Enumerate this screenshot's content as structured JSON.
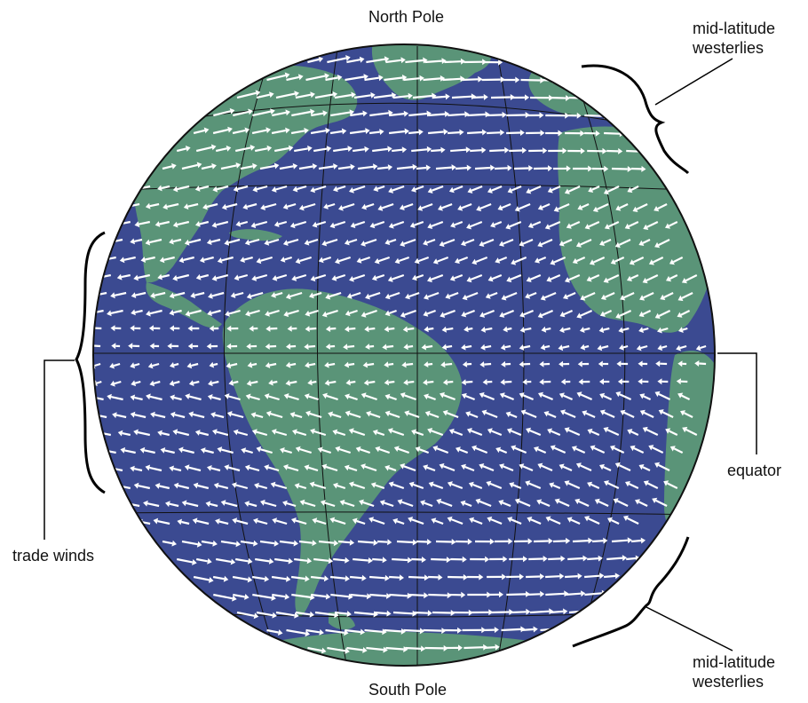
{
  "labels": {
    "north_pole": "North Pole",
    "south_pole": "South Pole",
    "midlat_top_line1": "mid-latitude",
    "midlat_top_line2": "westerlies",
    "midlat_bottom_line1": "mid-latitude",
    "midlat_bottom_line2": "westerlies",
    "equator": "equator",
    "trade_winds": "trade winds"
  },
  "colors": {
    "ocean": "#3b4a91",
    "land": "#5a9478",
    "arrow": "#ffffff",
    "grid": "#111111",
    "outline": "#111111",
    "bracket": "#000000"
  },
  "icons": {
    "wind_arrow": "wind-arrow-icon"
  }
}
